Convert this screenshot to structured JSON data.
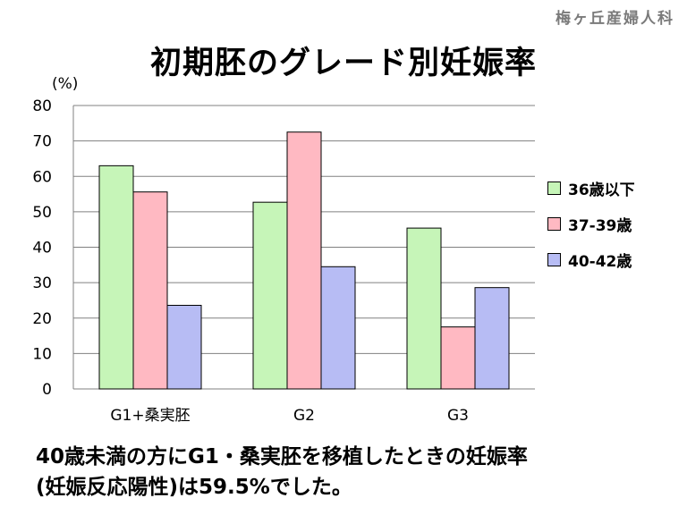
{
  "watermark": "梅ヶ丘産婦人科",
  "caption": {
    "line1": "40歳未満の方にG1・桑実胚を移植したときの妊娠率",
    "line2": "(妊娠反応陽性)は59.5%でした。"
  },
  "chart_data": {
    "type": "bar",
    "title": "初期胚のグレード別妊娠率",
    "ylabel": "(%)",
    "xlabel": "",
    "ylim": [
      0,
      80
    ],
    "yticks": [
      0,
      10,
      20,
      30,
      40,
      50,
      60,
      70,
      80
    ],
    "grid": true,
    "legend_position": "right",
    "categories": [
      "G1+桑実胚",
      "G2",
      "G3"
    ],
    "series": [
      {
        "name": "36歳以下",
        "color": "#c6f5b8",
        "values": [
          63,
          52.7,
          45.4
        ]
      },
      {
        "name": "37-39歳",
        "color": "#ffb9c2",
        "values": [
          55.6,
          72.5,
          17.5
        ]
      },
      {
        "name": "40-42歳",
        "color": "#b7bcf4",
        "values": [
          23.6,
          34.5,
          28.6
        ]
      }
    ]
  }
}
